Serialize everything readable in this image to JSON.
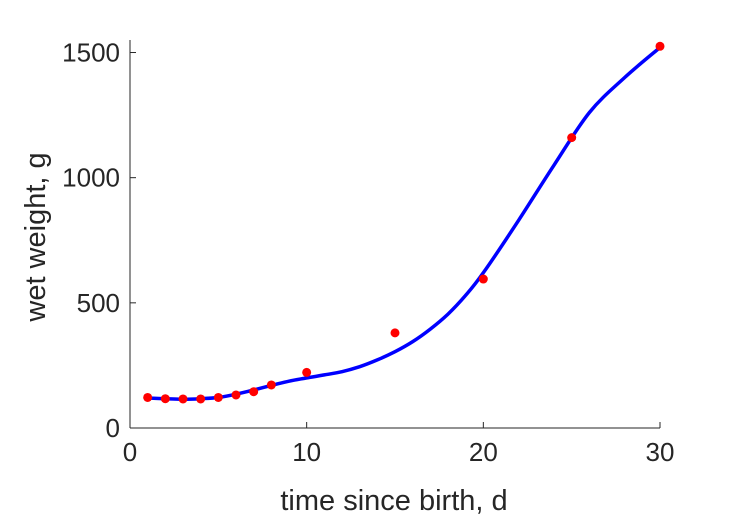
{
  "chart_data": {
    "type": "line",
    "title": "",
    "xlabel": "time since birth, d",
    "ylabel": "wet weight, g",
    "xlim": [
      0,
      30
    ],
    "ylim": [
      0,
      1550
    ],
    "xticks": [
      0,
      10,
      20,
      30
    ],
    "yticks": [
      0,
      500,
      1000,
      1500
    ],
    "grid": false,
    "legend": "none",
    "series": [
      {
        "type": "line",
        "color": "#0000ff",
        "x": [
          1,
          2,
          3,
          4,
          5,
          6,
          7,
          8,
          9,
          10,
          11,
          12,
          13,
          14,
          15,
          16,
          17,
          18,
          19,
          20,
          22,
          24,
          26,
          28,
          30
        ],
        "y": [
          120,
          117,
          115,
          117,
          122,
          135,
          152,
          170,
          187,
          200,
          212,
          225,
          245,
          272,
          305,
          345,
          395,
          455,
          530,
          620,
          830,
          1050,
          1260,
          1400,
          1520
        ]
      },
      {
        "type": "scatter",
        "color": "#ff0000",
        "x": [
          1,
          2,
          3,
          4,
          5,
          6,
          7,
          8,
          10,
          15,
          20,
          25,
          30
        ],
        "y": [
          122,
          117,
          116,
          116,
          122,
          132,
          145,
          172,
          222,
          380,
          595,
          1160,
          1525
        ]
      }
    ]
  }
}
